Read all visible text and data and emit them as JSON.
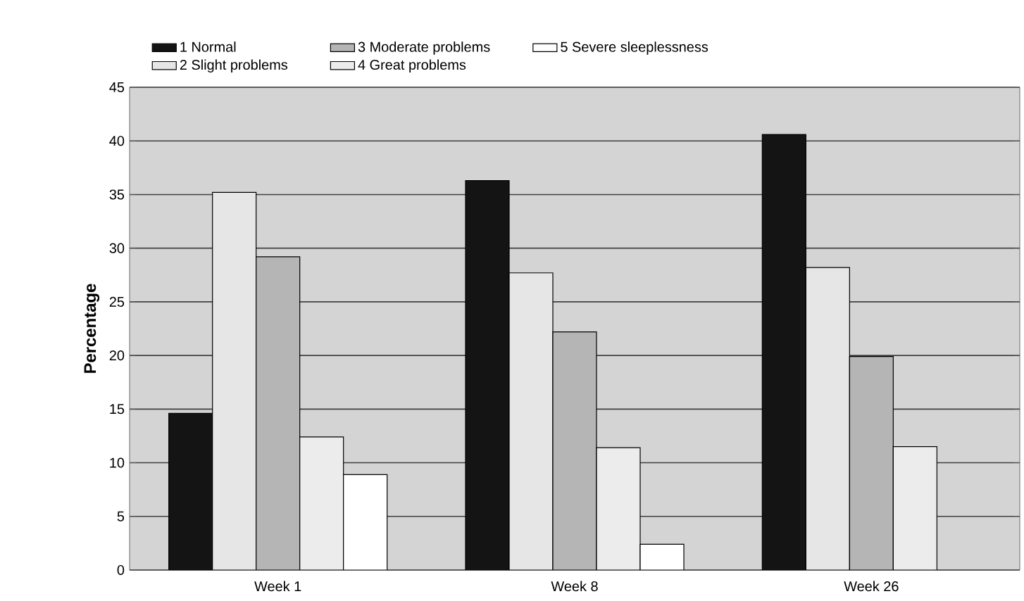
{
  "chart_data": {
    "type": "bar",
    "ylabel": "Percentage",
    "categories": [
      "Week 1",
      "Week 8",
      "Week 26"
    ],
    "series": [
      {
        "name": "1 Normal",
        "color": "#141414",
        "values": [
          14.6,
          36.3,
          40.6
        ]
      },
      {
        "name": "2 Slight problems",
        "color": "#e6e6e6",
        "values": [
          35.2,
          27.7,
          28.2
        ]
      },
      {
        "name": "3 Moderate problems",
        "color": "#b5b5b5",
        "values": [
          29.2,
          22.2,
          19.9
        ]
      },
      {
        "name": "4 Great problems",
        "color": "#ececec",
        "values": [
          12.4,
          11.4,
          11.5
        ]
      },
      {
        "name": "5 Severe sleeplessness",
        "color": "#ffffff",
        "values": [
          8.9,
          2.4,
          null
        ]
      }
    ],
    "ylim": [
      0,
      45
    ],
    "yticks": [
      0,
      5,
      10,
      15,
      20,
      25,
      30,
      35,
      40,
      45
    ],
    "grid": "y",
    "legend": "top"
  }
}
